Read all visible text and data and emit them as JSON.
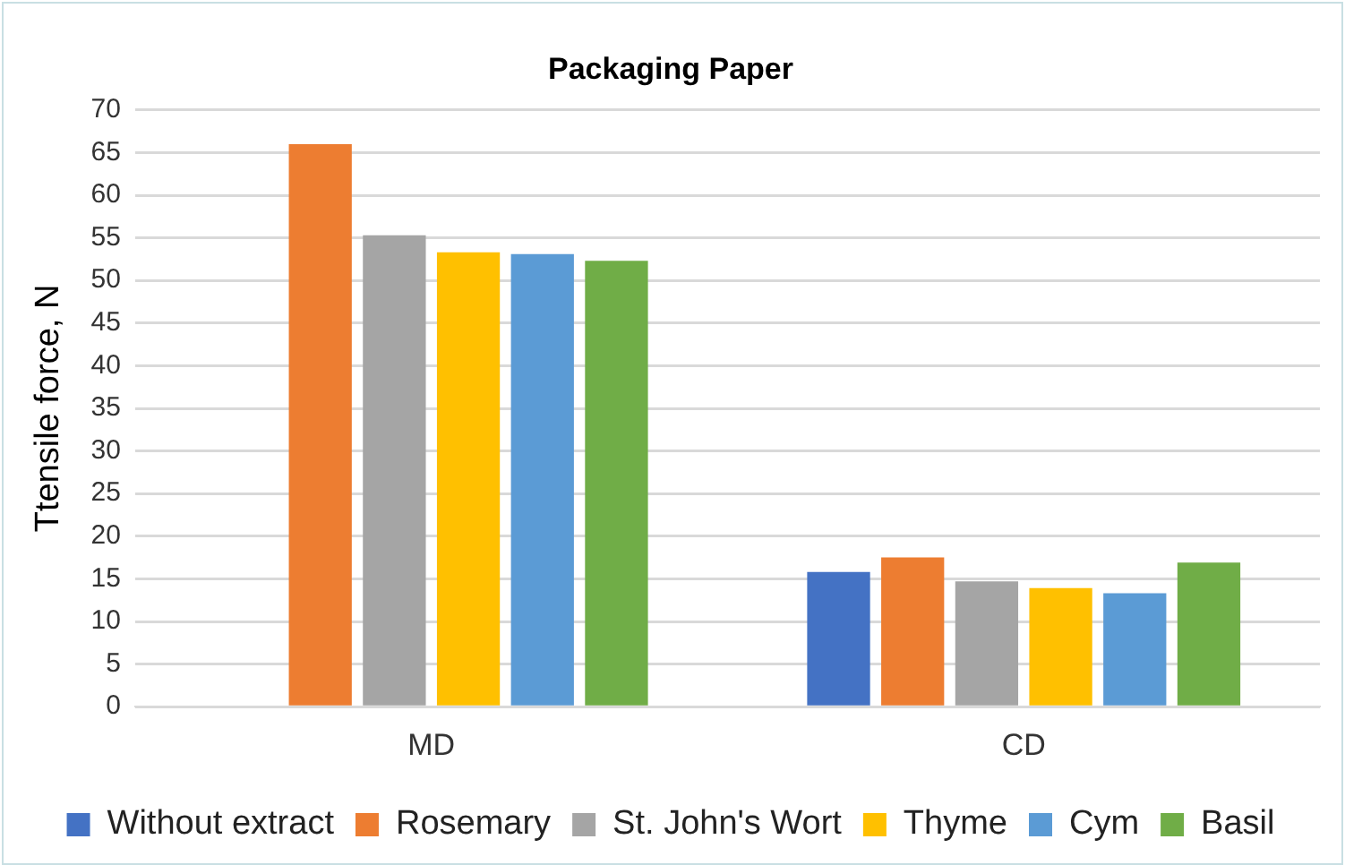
{
  "chart_data": {
    "type": "bar",
    "title": "Packaging Paper",
    "ylabel": "Ttensile force, N",
    "categories": [
      "MD",
      "CD"
    ],
    "series": [
      {
        "name": "Without extract",
        "color": "#4472c4",
        "values": [
          null,
          15.8
        ]
      },
      {
        "name": "Rosemary",
        "color": "#ed7d31",
        "values": [
          66,
          17.5
        ]
      },
      {
        "name": "St. John's Wort",
        "color": "#a5a5a5",
        "values": [
          55.3,
          14.7
        ]
      },
      {
        "name": "Thyme",
        "color": "#ffc000",
        "values": [
          53.3,
          13.9
        ]
      },
      {
        "name": "Cym",
        "color": "#5b9bd5",
        "values": [
          53.1,
          13.3
        ]
      },
      {
        "name": "Basil",
        "color": "#70ad47",
        "values": [
          52.3,
          16.9
        ]
      }
    ],
    "ylim": [
      0,
      70
    ],
    "yticks": [
      0,
      5,
      10,
      15,
      20,
      25,
      30,
      35,
      40,
      45,
      50,
      55,
      60,
      65,
      70
    ],
    "grid": "y",
    "legend": "bottom"
  }
}
